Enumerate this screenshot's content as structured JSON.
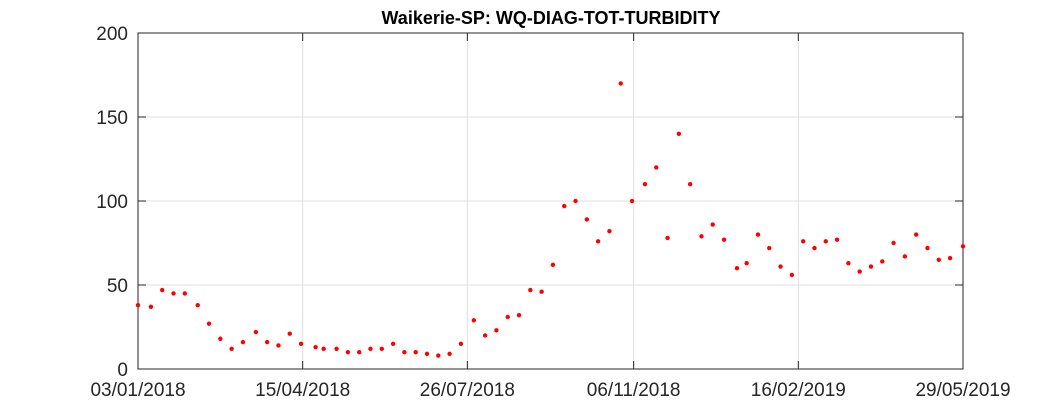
{
  "chart_data": {
    "type": "scatter",
    "title": "Waikerie-SP: WQ-DIAG-TOT-TURBIDITY",
    "xlabel": "",
    "ylabel": "",
    "xlim": [
      "2018-01-03",
      "2019-05-29"
    ],
    "ylim": [
      0,
      200
    ],
    "x_ticks": [
      "2018-01-03",
      "2018-04-15",
      "2018-07-26",
      "2018-11-06",
      "2019-02-16",
      "2019-05-29"
    ],
    "x_tick_labels": [
      "03/01/2018",
      "15/04/2018",
      "26/07/2018",
      "06/11/2018",
      "16/02/2019",
      "29/05/2019"
    ],
    "y_ticks": [
      0,
      50,
      100,
      150,
      200
    ],
    "y_tick_labels": [
      "0",
      "50",
      "100",
      "150",
      "200"
    ],
    "grid": true,
    "marker_color": "#ff0000",
    "series": [
      {
        "x": [
          "2018-01-03",
          "2018-01-11",
          "2018-01-18",
          "2018-01-25",
          "2018-02-01",
          "2018-02-09",
          "2018-02-16",
          "2018-02-23",
          "2018-03-02",
          "2018-03-09",
          "2018-03-17",
          "2018-03-24",
          "2018-03-31",
          "2018-04-07",
          "2018-04-14",
          "2018-04-23",
          "2018-04-28",
          "2018-05-06",
          "2018-05-13",
          "2018-05-20",
          "2018-05-27",
          "2018-06-03",
          "2018-06-10",
          "2018-06-17",
          "2018-06-24",
          "2018-07-01",
          "2018-07-08",
          "2018-07-15",
          "2018-07-22",
          "2018-07-30",
          "2018-08-06",
          "2018-08-13",
          "2018-08-20",
          "2018-08-27",
          "2018-09-03",
          "2018-09-10",
          "2018-09-17",
          "2018-09-24",
          "2018-10-01",
          "2018-10-08",
          "2018-10-15",
          "2018-10-22",
          "2018-10-29",
          "2018-11-05",
          "2018-11-13",
          "2018-11-20",
          "2018-11-27",
          "2018-12-04",
          "2018-12-11",
          "2018-12-18",
          "2018-12-25",
          "2019-01-01",
          "2019-01-09",
          "2019-01-15",
          "2019-01-22",
          "2019-01-29",
          "2019-02-05",
          "2019-02-12",
          "2019-02-19",
          "2019-02-26",
          "2019-03-05",
          "2019-03-12",
          "2019-03-19",
          "2019-03-26",
          "2019-04-02",
          "2019-04-09",
          "2019-04-16",
          "2019-04-23",
          "2019-04-30",
          "2019-05-07",
          "2019-05-14",
          "2019-05-21",
          "2019-05-29"
        ],
        "values": [
          38,
          37,
          47,
          45,
          45,
          38,
          27,
          18,
          12,
          16,
          22,
          16,
          14,
          21,
          15,
          13,
          12,
          12,
          10,
          10,
          12,
          12,
          15,
          10,
          10,
          9,
          8,
          9,
          15,
          29,
          20,
          23,
          31,
          32,
          47,
          46,
          62,
          97,
          100,
          89,
          76,
          82,
          170,
          100,
          110,
          120,
          78,
          140,
          110,
          79,
          86,
          77,
          60,
          63,
          80,
          72,
          61,
          56,
          76,
          72,
          76,
          77,
          63,
          58,
          61,
          64,
          75,
          67,
          80,
          72,
          65,
          66,
          73
        ]
      }
    ]
  }
}
